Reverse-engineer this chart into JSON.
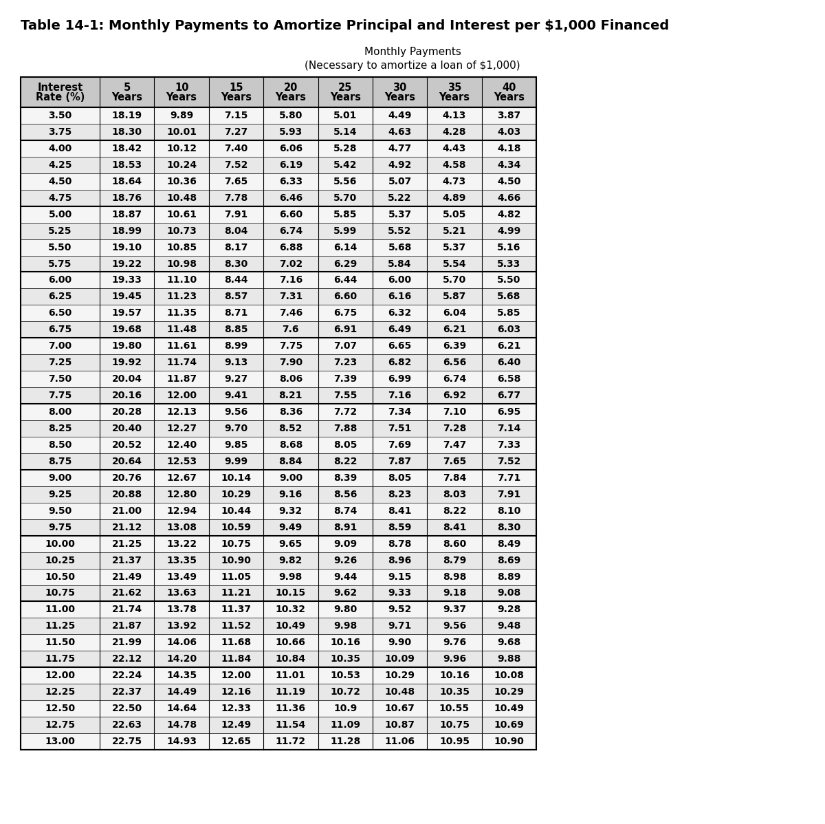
{
  "title": "Table 14-1: Monthly Payments to Amortize Principal and Interest per $1,000 Financed",
  "subtitle1": "Monthly Payments",
  "subtitle2": "(Necessary to amortize a loan of $1,000)",
  "col_headers_line1": [
    "Interest",
    "5",
    "10",
    "15",
    "20",
    "25",
    "30",
    "35",
    "40"
  ],
  "col_headers_line2": [
    "Rate (%)",
    "Years",
    "Years",
    "Years",
    "Years",
    "Years",
    "Years",
    "Years",
    "Years"
  ],
  "rows": [
    [
      "3.50",
      "18.19",
      "9.89",
      "7.15",
      "5.80",
      "5.01",
      "4.49",
      "4.13",
      "3.87"
    ],
    [
      "3.75",
      "18.30",
      "10.01",
      "7.27",
      "5.93",
      "5.14",
      "4.63",
      "4.28",
      "4.03"
    ],
    [
      "4.00",
      "18.42",
      "10.12",
      "7.40",
      "6.06",
      "5.28",
      "4.77",
      "4.43",
      "4.18"
    ],
    [
      "4.25",
      "18.53",
      "10.24",
      "7.52",
      "6.19",
      "5.42",
      "4.92",
      "4.58",
      "4.34"
    ],
    [
      "4.50",
      "18.64",
      "10.36",
      "7.65",
      "6.33",
      "5.56",
      "5.07",
      "4.73",
      "4.50"
    ],
    [
      "4.75",
      "18.76",
      "10.48",
      "7.78",
      "6.46",
      "5.70",
      "5.22",
      "4.89",
      "4.66"
    ],
    [
      "5.00",
      "18.87",
      "10.61",
      "7.91",
      "6.60",
      "5.85",
      "5.37",
      "5.05",
      "4.82"
    ],
    [
      "5.25",
      "18.99",
      "10.73",
      "8.04",
      "6.74",
      "5.99",
      "5.52",
      "5.21",
      "4.99"
    ],
    [
      "5.50",
      "19.10",
      "10.85",
      "8.17",
      "6.88",
      "6.14",
      "5.68",
      "5.37",
      "5.16"
    ],
    [
      "5.75",
      "19.22",
      "10.98",
      "8.30",
      "7.02",
      "6.29",
      "5.84",
      "5.54",
      "5.33"
    ],
    [
      "6.00",
      "19.33",
      "11.10",
      "8.44",
      "7.16",
      "6.44",
      "6.00",
      "5.70",
      "5.50"
    ],
    [
      "6.25",
      "19.45",
      "11.23",
      "8.57",
      "7.31",
      "6.60",
      "6.16",
      "5.87",
      "5.68"
    ],
    [
      "6.50",
      "19.57",
      "11.35",
      "8.71",
      "7.46",
      "6.75",
      "6.32",
      "6.04",
      "5.85"
    ],
    [
      "6.75",
      "19.68",
      "11.48",
      "8.85",
      "7.6",
      "6.91",
      "6.49",
      "6.21",
      "6.03"
    ],
    [
      "7.00",
      "19.80",
      "11.61",
      "8.99",
      "7.75",
      "7.07",
      "6.65",
      "6.39",
      "6.21"
    ],
    [
      "7.25",
      "19.92",
      "11.74",
      "9.13",
      "7.90",
      "7.23",
      "6.82",
      "6.56",
      "6.40"
    ],
    [
      "7.50",
      "20.04",
      "11.87",
      "9.27",
      "8.06",
      "7.39",
      "6.99",
      "6.74",
      "6.58"
    ],
    [
      "7.75",
      "20.16",
      "12.00",
      "9.41",
      "8.21",
      "7.55",
      "7.16",
      "6.92",
      "6.77"
    ],
    [
      "8.00",
      "20.28",
      "12.13",
      "9.56",
      "8.36",
      "7.72",
      "7.34",
      "7.10",
      "6.95"
    ],
    [
      "8.25",
      "20.40",
      "12.27",
      "9.70",
      "8.52",
      "7.88",
      "7.51",
      "7.28",
      "7.14"
    ],
    [
      "8.50",
      "20.52",
      "12.40",
      "9.85",
      "8.68",
      "8.05",
      "7.69",
      "7.47",
      "7.33"
    ],
    [
      "8.75",
      "20.64",
      "12.53",
      "9.99",
      "8.84",
      "8.22",
      "7.87",
      "7.65",
      "7.52"
    ],
    [
      "9.00",
      "20.76",
      "12.67",
      "10.14",
      "9.00",
      "8.39",
      "8.05",
      "7.84",
      "7.71"
    ],
    [
      "9.25",
      "20.88",
      "12.80",
      "10.29",
      "9.16",
      "8.56",
      "8.23",
      "8.03",
      "7.91"
    ],
    [
      "9.50",
      "21.00",
      "12.94",
      "10.44",
      "9.32",
      "8.74",
      "8.41",
      "8.22",
      "8.10"
    ],
    [
      "9.75",
      "21.12",
      "13.08",
      "10.59",
      "9.49",
      "8.91",
      "8.59",
      "8.41",
      "8.30"
    ],
    [
      "10.00",
      "21.25",
      "13.22",
      "10.75",
      "9.65",
      "9.09",
      "8.78",
      "8.60",
      "8.49"
    ],
    [
      "10.25",
      "21.37",
      "13.35",
      "10.90",
      "9.82",
      "9.26",
      "8.96",
      "8.79",
      "8.69"
    ],
    [
      "10.50",
      "21.49",
      "13.49",
      "11.05",
      "9.98",
      "9.44",
      "9.15",
      "8.98",
      "8.89"
    ],
    [
      "10.75",
      "21.62",
      "13.63",
      "11.21",
      "10.15",
      "9.62",
      "9.33",
      "9.18",
      "9.08"
    ],
    [
      "11.00",
      "21.74",
      "13.78",
      "11.37",
      "10.32",
      "9.80",
      "9.52",
      "9.37",
      "9.28"
    ],
    [
      "11.25",
      "21.87",
      "13.92",
      "11.52",
      "10.49",
      "9.98",
      "9.71",
      "9.56",
      "9.48"
    ],
    [
      "11.50",
      "21.99",
      "14.06",
      "11.68",
      "10.66",
      "10.16",
      "9.90",
      "9.76",
      "9.68"
    ],
    [
      "11.75",
      "22.12",
      "14.20",
      "11.84",
      "10.84",
      "10.35",
      "10.09",
      "9.96",
      "9.88"
    ],
    [
      "12.00",
      "22.24",
      "14.35",
      "12.00",
      "11.01",
      "10.53",
      "10.29",
      "10.16",
      "10.08"
    ],
    [
      "12.25",
      "22.37",
      "14.49",
      "12.16",
      "11.19",
      "10.72",
      "10.48",
      "10.35",
      "10.29"
    ],
    [
      "12.50",
      "22.50",
      "14.64",
      "12.33",
      "11.36",
      "10.9",
      "10.67",
      "10.55",
      "10.49"
    ],
    [
      "12.75",
      "22.63",
      "14.78",
      "12.49",
      "11.54",
      "11.09",
      "10.87",
      "10.75",
      "10.69"
    ],
    [
      "13.00",
      "22.75",
      "14.93",
      "12.65",
      "11.72",
      "11.28",
      "11.06",
      "10.95",
      "10.90"
    ]
  ],
  "group_starts": [
    0,
    2,
    6,
    10,
    14,
    18,
    22,
    26,
    30,
    34,
    39
  ],
  "header_bg": "#c8c8c8",
  "light_bg": "#e8e8e8",
  "white_bg": "#f5f5f5",
  "border_color": "#000000"
}
